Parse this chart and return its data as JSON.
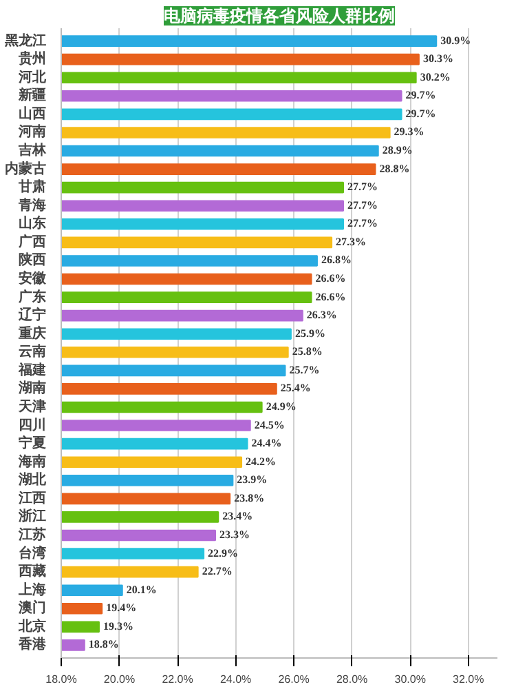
{
  "chart_data": {
    "type": "bar",
    "orientation": "horizontal",
    "title": "电脑病毒疫情各省风险人群比例",
    "categories": [
      "黑龙江",
      "贵州",
      "河北",
      "新疆",
      "山西",
      "河南",
      "吉林",
      "内蒙古",
      "甘肃",
      "青海",
      "山东",
      "广西",
      "陕西",
      "安徽",
      "广东",
      "辽宁",
      "重庆",
      "云南",
      "福建",
      "湖南",
      "天津",
      "四川",
      "宁夏",
      "海南",
      "湖北",
      "江西",
      "浙江",
      "江苏",
      "台湾",
      "西藏",
      "上海",
      "澳门",
      "北京",
      "香港"
    ],
    "values": [
      30.9,
      30.3,
      30.2,
      29.7,
      29.7,
      29.3,
      28.9,
      28.8,
      27.7,
      27.7,
      27.7,
      27.3,
      26.8,
      26.6,
      26.6,
      26.3,
      25.9,
      25.8,
      25.7,
      25.4,
      24.9,
      24.5,
      24.4,
      24.2,
      23.9,
      23.8,
      23.4,
      23.3,
      22.9,
      22.7,
      20.1,
      19.4,
      19.3,
      18.8
    ],
    "value_labels": [
      "30.9%",
      "30.3%",
      "30.2%",
      "29.7%",
      "29.7%",
      "29.3%",
      "28.9%",
      "28.8%",
      "27.7%",
      "27.7%",
      "27.7%",
      "27.3%",
      "26.8%",
      "26.6%",
      "26.6%",
      "26.3%",
      "25.9%",
      "25.8%",
      "25.7%",
      "25.4%",
      "24.9%",
      "24.5%",
      "24.4%",
      "24.2%",
      "23.9%",
      "23.8%",
      "23.4%",
      "23.3%",
      "22.9%",
      "22.7%",
      "20.1%",
      "19.4%",
      "19.3%",
      "18.8%"
    ],
    "colors": [
      "#29abe2",
      "#e8601c",
      "#66c010",
      "#b36ad6",
      "#25c4dd",
      "#f7bd18",
      "#29abe2",
      "#e8601c",
      "#66c010",
      "#b36ad6",
      "#25c4dd",
      "#f7bd18",
      "#29abe2",
      "#e8601c",
      "#66c010",
      "#b36ad6",
      "#25c4dd",
      "#f7bd18",
      "#29abe2",
      "#e8601c",
      "#66c010",
      "#b36ad6",
      "#25c4dd",
      "#f7bd18",
      "#29abe2",
      "#e8601c",
      "#66c010",
      "#b36ad6",
      "#25c4dd",
      "#f7bd18",
      "#29abe2",
      "#e8601c",
      "#66c010",
      "#b36ad6"
    ],
    "xlim": [
      18,
      33
    ],
    "xticks": [
      {
        "value": 18,
        "label": "18.0%"
      },
      {
        "value": 20,
        "label": "20.0%"
      },
      {
        "value": 22,
        "label": "22.0%"
      },
      {
        "value": 24,
        "label": "24.0%"
      },
      {
        "value": 26,
        "label": "26.0%"
      },
      {
        "value": 28,
        "label": "28.0%"
      },
      {
        "value": 30,
        "label": "30.0%"
      },
      {
        "value": 32,
        "label": "32.0%"
      }
    ],
    "grid": "x"
  }
}
